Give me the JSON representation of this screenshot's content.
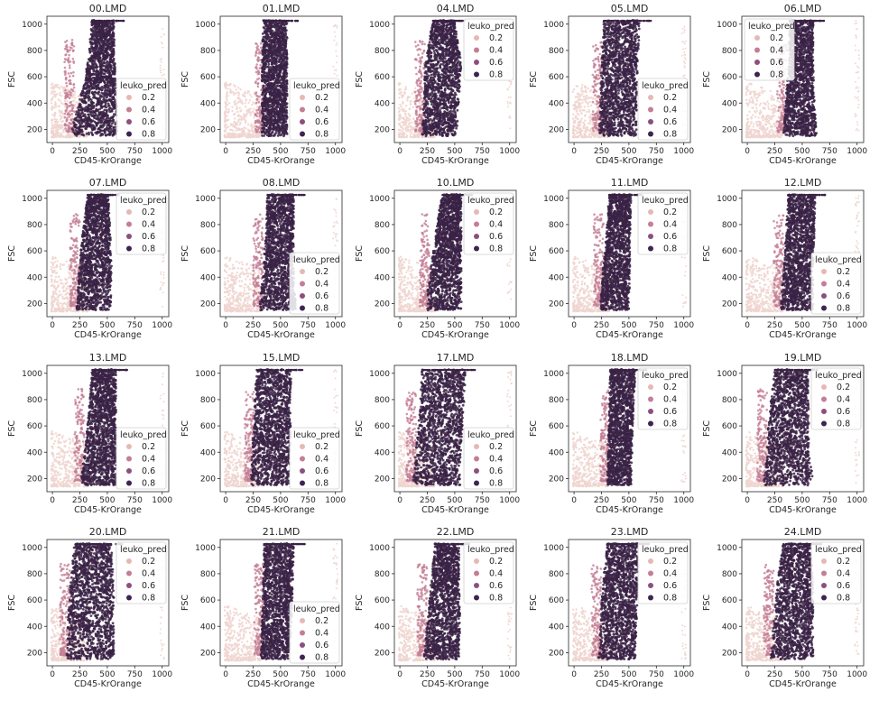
{
  "chart_data": {
    "type": "scatter",
    "layout": "grid",
    "rows": 4,
    "cols": 5,
    "shared": {
      "xlabel": "CD45-KrOrange",
      "ylabel": "FSC",
      "x_ticks": [
        0,
        250,
        500,
        750,
        1000
      ],
      "y_ticks": [
        200,
        400,
        600,
        800,
        1000
      ],
      "xlim": [
        -50,
        1060
      ],
      "ylim": [
        100,
        1060
      ],
      "hue": "leuko_pred",
      "legend_title": "leuko_pred",
      "legend_entries": [
        "0.2",
        "0.4",
        "0.6",
        "0.8"
      ],
      "legend_colors": [
        "#e6b8b4",
        "#c47e95",
        "#8c4f7e",
        "#3e2452"
      ],
      "background_color": "#f0d5cf",
      "foreground_color": "#3a2245",
      "grid": false
    },
    "panels": [
      {
        "title": "00.LMD",
        "legend": "lower-right",
        "cluster": {
          "center": [
            380,
            720
          ],
          "width": [
            [
              170,
              590
            ],
            [
              250,
              590
            ],
            [
              320,
              570
            ],
            [
              360,
              560
            ]
          ]
        }
      },
      {
        "title": "01.LMD",
        "legend": "lower-right",
        "cluster": {
          "center": [
            450,
            650
          ],
          "width": [
            [
              330,
              560
            ],
            [
              330,
              560
            ],
            [
              330,
              560
            ],
            [
              340,
              560
            ]
          ]
        }
      },
      {
        "title": "04.LMD",
        "legend": "upper-right",
        "cluster": {
          "center": [
            380,
            600
          ],
          "width": [
            [
              200,
              520
            ],
            [
              220,
              540
            ],
            [
              230,
              560
            ],
            [
              300,
              500
            ]
          ]
        }
      },
      {
        "title": "05.LMD",
        "legend": "lower-right",
        "cluster": {
          "center": [
            380,
            700
          ],
          "width": [
            [
              230,
              570
            ],
            [
              240,
              570
            ],
            [
              250,
              580
            ],
            [
              270,
              600
            ]
          ]
        }
      },
      {
        "title": "06.LMD",
        "legend": "upper-left",
        "cluster": {
          "center": [
            480,
            650
          ],
          "width": [
            [
              330,
              630
            ],
            [
              350,
              610
            ],
            [
              380,
              600
            ],
            [
              380,
              600
            ]
          ]
        }
      },
      {
        "title": "07.LMD",
        "legend": "upper-right",
        "cluster": {
          "center": [
            380,
            620
          ],
          "width": [
            [
              220,
              530
            ],
            [
              240,
              540
            ],
            [
              270,
              530
            ],
            [
              320,
              510
            ]
          ]
        }
      },
      {
        "title": "08.LMD",
        "legend": "lower-right",
        "cluster": {
          "center": [
            470,
            650
          ],
          "width": [
            [
              310,
              640
            ],
            [
              340,
              620
            ],
            [
              360,
              620
            ],
            [
              380,
              620
            ]
          ]
        }
      },
      {
        "title": "10.LMD",
        "legend": "upper-right",
        "cluster": {
          "center": [
            420,
            600
          ],
          "width": [
            [
              240,
              560
            ],
            [
              270,
              560
            ],
            [
              320,
              560
            ],
            [
              380,
              560
            ]
          ]
        }
      },
      {
        "title": "11.LMD",
        "legend": "upper-right",
        "cluster": {
          "center": [
            380,
            620
          ],
          "width": [
            [
              240,
              500
            ],
            [
              260,
              510
            ],
            [
              290,
              510
            ],
            [
              320,
              520
            ]
          ]
        }
      },
      {
        "title": "12.LMD",
        "legend": "lower-right",
        "cluster": {
          "center": [
            460,
            650
          ],
          "width": [
            [
              300,
              600
            ],
            [
              330,
              600
            ],
            [
              350,
              610
            ],
            [
              370,
              620
            ]
          ]
        }
      },
      {
        "title": "13.LMD",
        "legend": "lower-right",
        "cluster": {
          "center": [
            420,
            600
          ],
          "width": [
            [
              260,
              580
            ],
            [
              300,
              580
            ],
            [
              330,
              580
            ],
            [
              360,
              580
            ]
          ]
        }
      },
      {
        "title": "15.LMD",
        "legend": "lower-right",
        "cluster": {
          "center": [
            380,
            680
          ],
          "width": [
            [
              230,
              580
            ],
            [
              240,
              590
            ],
            [
              260,
              590
            ],
            [
              280,
              600
            ]
          ]
        }
      },
      {
        "title": "17.LMD",
        "legend": "lower-right",
        "cluster": {
          "center": [
            340,
            700
          ],
          "width": [
            [
              120,
              550
            ],
            [
              150,
              560
            ],
            [
              180,
              580
            ],
            [
              200,
              600
            ]
          ]
        }
      },
      {
        "title": "18.LMD",
        "legend": "upper-right",
        "cluster": {
          "center": [
            400,
            620
          ],
          "width": [
            [
              300,
              520
            ],
            [
              310,
              530
            ],
            [
              320,
              540
            ],
            [
              330,
              560
            ]
          ]
        }
      },
      {
        "title": "19.LMD",
        "legend": "upper-right",
        "cluster": {
          "center": [
            320,
            650
          ],
          "width": [
            [
              150,
              600
            ],
            [
              180,
              560
            ],
            [
              200,
              560
            ],
            [
              250,
              550
            ]
          ]
        }
      },
      {
        "title": "20.LMD",
        "legend": "upper-right",
        "cluster": {
          "center": [
            330,
            670
          ],
          "width": [
            [
              130,
              560
            ],
            [
              140,
              560
            ],
            [
              160,
              560
            ],
            [
              200,
              540
            ]
          ]
        }
      },
      {
        "title": "21.LMD",
        "legend": "lower-right",
        "cluster": {
          "center": [
            450,
            650
          ],
          "width": [
            [
              320,
              580
            ],
            [
              330,
              600
            ],
            [
              340,
              610
            ],
            [
              350,
              620
            ]
          ]
        }
      },
      {
        "title": "22.LMD",
        "legend": "upper-right",
        "cluster": {
          "center": [
            400,
            630
          ],
          "width": [
            [
              220,
              540
            ],
            [
              250,
              550
            ],
            [
              280,
              540
            ],
            [
              320,
              540
            ]
          ]
        }
      },
      {
        "title": "23.LMD",
        "legend": "upper-right",
        "cluster": {
          "center": [
            380,
            660
          ],
          "width": [
            [
              220,
              560
            ],
            [
              240,
              570
            ],
            [
              260,
              580
            ],
            [
              300,
              590
            ]
          ]
        }
      },
      {
        "title": "24.LMD",
        "legend": "upper-right",
        "cluster": {
          "center": [
            420,
            620
          ],
          "width": [
            [
              210,
              600
            ],
            [
              240,
              600
            ],
            [
              270,
              600
            ],
            [
              320,
              580
            ]
          ]
        }
      }
    ]
  }
}
